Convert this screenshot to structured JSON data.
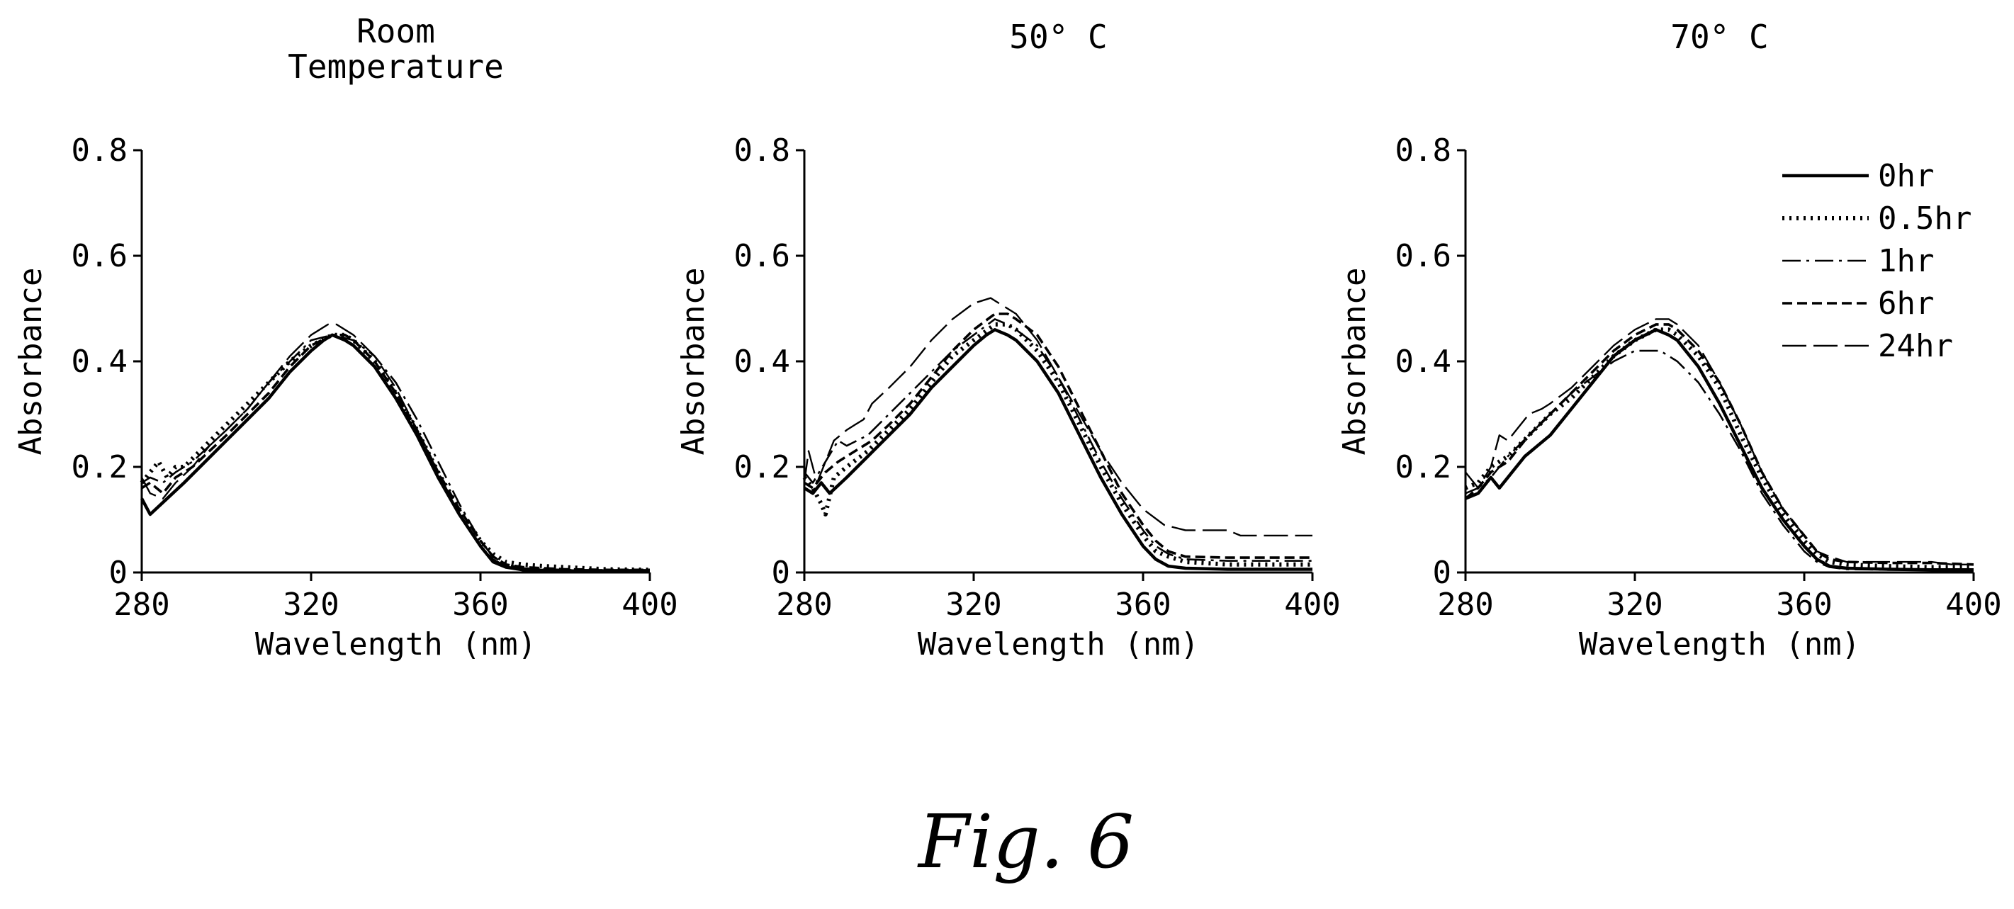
{
  "figure": {
    "caption": "Fig. 6"
  },
  "legend": {
    "entries": [
      {
        "label": "0hr",
        "style": "solid"
      },
      {
        "label": "0.5hr",
        "style": "dotted"
      },
      {
        "label": "1hr",
        "style": "dashdot"
      },
      {
        "label": "6hr",
        "style": "dashed"
      },
      {
        "label": "24hr",
        "style": "longdash"
      }
    ]
  },
  "chart_data": [
    {
      "type": "line",
      "title": "Room Temperature",
      "title_lines": [
        "Room",
        "Temperature"
      ],
      "xlabel": "Wavelength (nm)",
      "ylabel": "Absorbance",
      "xlim": [
        280,
        400
      ],
      "ylim": [
        0,
        0.8
      ],
      "xticks": [
        280,
        320,
        360,
        400
      ],
      "yticks": [
        "0",
        "0.2",
        "0.4",
        "0.6",
        "0.8"
      ],
      "ytick_values": [
        0,
        0.2,
        0.4,
        0.6,
        0.8
      ],
      "grid": false,
      "series": [
        {
          "name": "0hr",
          "style": "solid",
          "x": [
            280,
            282,
            286,
            290,
            295,
            300,
            305,
            310,
            315,
            320,
            323,
            325,
            328,
            330,
            335,
            340,
            345,
            350,
            355,
            360,
            363,
            366,
            370,
            380,
            390,
            400
          ],
          "y": [
            0.14,
            0.11,
            0.14,
            0.17,
            0.21,
            0.25,
            0.29,
            0.33,
            0.38,
            0.42,
            0.44,
            0.45,
            0.44,
            0.43,
            0.39,
            0.33,
            0.26,
            0.18,
            0.11,
            0.05,
            0.02,
            0.01,
            0.005,
            0.003,
            0.003,
            0.003
          ]
        },
        {
          "name": "0.5hr",
          "style": "dotted",
          "x": [
            280,
            282,
            284,
            286,
            288,
            290,
            295,
            300,
            305,
            310,
            315,
            320,
            325,
            328,
            330,
            335,
            340,
            345,
            350,
            355,
            360,
            363,
            366,
            370,
            375,
            380,
            390,
            400
          ],
          "y": [
            0.17,
            0.19,
            0.21,
            0.18,
            0.2,
            0.2,
            0.24,
            0.28,
            0.32,
            0.36,
            0.4,
            0.43,
            0.45,
            0.45,
            0.44,
            0.4,
            0.34,
            0.27,
            0.19,
            0.12,
            0.06,
            0.035,
            0.02,
            0.015,
            0.012,
            0.01,
            0.006,
            0.005
          ]
        },
        {
          "name": "1hr",
          "style": "dashdot",
          "x": [
            280,
            282,
            285,
            288,
            292,
            296,
            300,
            305,
            310,
            315,
            320,
            325,
            330,
            335,
            340,
            345,
            350,
            355,
            360,
            363,
            366,
            370,
            380,
            390,
            400
          ],
          "y": [
            0.17,
            0.18,
            0.17,
            0.19,
            0.21,
            0.24,
            0.27,
            0.31,
            0.36,
            0.4,
            0.44,
            0.45,
            0.44,
            0.41,
            0.36,
            0.29,
            0.21,
            0.13,
            0.06,
            0.03,
            0.015,
            0.008,
            0.005,
            0.004,
            0.004
          ]
        },
        {
          "name": "6hr",
          "style": "dashed",
          "x": [
            280,
            282,
            285,
            288,
            292,
            296,
            300,
            305,
            310,
            315,
            320,
            325,
            328,
            330,
            335,
            340,
            345,
            350,
            355,
            360,
            363,
            366,
            370,
            380,
            390,
            400
          ],
          "y": [
            0.16,
            0.17,
            0.15,
            0.18,
            0.2,
            0.23,
            0.26,
            0.3,
            0.34,
            0.39,
            0.43,
            0.45,
            0.45,
            0.44,
            0.4,
            0.34,
            0.27,
            0.19,
            0.12,
            0.06,
            0.03,
            0.015,
            0.01,
            0.006,
            0.005,
            0.005
          ]
        },
        {
          "name": "24hr",
          "style": "longdash",
          "x": [
            280,
            282,
            285,
            288,
            292,
            296,
            300,
            305,
            310,
            315,
            320,
            324,
            326,
            330,
            335,
            340,
            345,
            350,
            355,
            360,
            363,
            366,
            370,
            380,
            390,
            400
          ],
          "y": [
            0.18,
            0.15,
            0.14,
            0.17,
            0.2,
            0.24,
            0.27,
            0.31,
            0.36,
            0.41,
            0.45,
            0.47,
            0.47,
            0.45,
            0.41,
            0.35,
            0.27,
            0.19,
            0.11,
            0.05,
            0.025,
            0.012,
            0.007,
            0.005,
            0.005,
            0.005
          ]
        }
      ]
    },
    {
      "type": "line",
      "title": "50° C",
      "title_lines": [
        "50° C"
      ],
      "xlabel": "Wavelength (nm)",
      "ylabel": "Absorbance",
      "xlim": [
        280,
        400
      ],
      "ylim": [
        0,
        0.8
      ],
      "xticks": [
        280,
        320,
        360,
        400
      ],
      "yticks": [
        "0",
        "0.2",
        "0.4",
        "0.6",
        "0.8"
      ],
      "ytick_values": [
        0,
        0.2,
        0.4,
        0.6,
        0.8
      ],
      "grid": false,
      "series": [
        {
          "name": "0hr",
          "style": "solid",
          "x": [
            280,
            282,
            284,
            286,
            290,
            295,
            300,
            305,
            310,
            315,
            320,
            323,
            325,
            328,
            330,
            335,
            340,
            345,
            350,
            355,
            360,
            363,
            366,
            370,
            380,
            390,
            400
          ],
          "y": [
            0.16,
            0.15,
            0.17,
            0.15,
            0.18,
            0.22,
            0.26,
            0.3,
            0.35,
            0.39,
            0.43,
            0.45,
            0.46,
            0.45,
            0.44,
            0.4,
            0.34,
            0.26,
            0.18,
            0.11,
            0.05,
            0.025,
            0.012,
            0.008,
            0.006,
            0.006,
            0.006
          ]
        },
        {
          "name": "0.5hr",
          "style": "dotted",
          "x": [
            280,
            282,
            284,
            285,
            287,
            290,
            295,
            300,
            305,
            310,
            315,
            320,
            325,
            328,
            330,
            335,
            340,
            345,
            350,
            355,
            360,
            363,
            366,
            370,
            380,
            390,
            400
          ],
          "y": [
            0.18,
            0.16,
            0.13,
            0.11,
            0.18,
            0.2,
            0.23,
            0.27,
            0.31,
            0.36,
            0.41,
            0.44,
            0.47,
            0.47,
            0.46,
            0.42,
            0.36,
            0.28,
            0.2,
            0.13,
            0.07,
            0.04,
            0.03,
            0.02,
            0.015,
            0.015,
            0.015
          ]
        },
        {
          "name": "1hr",
          "style": "dashdot",
          "x": [
            280,
            282,
            285,
            288,
            290,
            295,
            300,
            305,
            310,
            315,
            320,
            325,
            328,
            330,
            335,
            340,
            345,
            350,
            355,
            360,
            363,
            366,
            370,
            380,
            390,
            400
          ],
          "y": [
            0.19,
            0.17,
            0.21,
            0.25,
            0.24,
            0.26,
            0.3,
            0.34,
            0.38,
            0.42,
            0.45,
            0.48,
            0.47,
            0.46,
            0.43,
            0.37,
            0.29,
            0.21,
            0.14,
            0.08,
            0.05,
            0.035,
            0.025,
            0.022,
            0.022,
            0.022
          ]
        },
        {
          "name": "6hr",
          "style": "dashed",
          "x": [
            280,
            282,
            285,
            288,
            292,
            296,
            300,
            305,
            310,
            315,
            320,
            325,
            328,
            330,
            335,
            340,
            345,
            350,
            355,
            360,
            363,
            366,
            370,
            380,
            390,
            400
          ],
          "y": [
            0.17,
            0.16,
            0.19,
            0.21,
            0.23,
            0.25,
            0.28,
            0.32,
            0.37,
            0.42,
            0.46,
            0.49,
            0.49,
            0.48,
            0.45,
            0.39,
            0.31,
            0.23,
            0.15,
            0.09,
            0.06,
            0.04,
            0.03,
            0.028,
            0.028,
            0.028
          ]
        },
        {
          "name": "24hr",
          "style": "longdash",
          "x": [
            280,
            281,
            283,
            285,
            287,
            290,
            292,
            294,
            296,
            300,
            305,
            310,
            315,
            320,
            324,
            326,
            330,
            335,
            340,
            345,
            350,
            355,
            360,
            365,
            370,
            380,
            383,
            390,
            400
          ],
          "y": [
            0.17,
            0.23,
            0.17,
            0.21,
            0.25,
            0.27,
            0.28,
            0.29,
            0.32,
            0.35,
            0.39,
            0.44,
            0.48,
            0.51,
            0.52,
            0.51,
            0.49,
            0.44,
            0.37,
            0.3,
            0.23,
            0.17,
            0.12,
            0.09,
            0.08,
            0.08,
            0.07,
            0.07,
            0.07
          ]
        }
      ]
    },
    {
      "type": "line",
      "title": "70° C",
      "title_lines": [
        "70° C"
      ],
      "xlabel": "Wavelength (nm)",
      "ylabel": "Absorbance",
      "xlim": [
        280,
        400
      ],
      "ylim": [
        0,
        0.8
      ],
      "xticks": [
        280,
        320,
        360,
        400
      ],
      "yticks": [
        "0",
        "0.2",
        "0.4",
        "0.6",
        "0.8"
      ],
      "ytick_values": [
        0,
        0.2,
        0.4,
        0.6,
        0.8
      ],
      "grid": false,
      "series": [
        {
          "name": "0hr",
          "style": "solid",
          "x": [
            280,
            283,
            286,
            288,
            291,
            294,
            297,
            300,
            305,
            310,
            315,
            320,
            325,
            328,
            330,
            335,
            340,
            345,
            350,
            355,
            360,
            363,
            366,
            370,
            380,
            390,
            400
          ],
          "y": [
            0.14,
            0.15,
            0.18,
            0.16,
            0.19,
            0.22,
            0.24,
            0.26,
            0.31,
            0.36,
            0.41,
            0.44,
            0.46,
            0.45,
            0.44,
            0.39,
            0.32,
            0.24,
            0.16,
            0.1,
            0.05,
            0.025,
            0.012,
            0.008,
            0.006,
            0.005,
            0.005
          ]
        },
        {
          "name": "0.5hr",
          "style": "dotted",
          "x": [
            280,
            283,
            286,
            290,
            295,
            300,
            305,
            310,
            315,
            320,
            325,
            328,
            330,
            335,
            340,
            345,
            350,
            355,
            360,
            363,
            366,
            370,
            380,
            390,
            400
          ],
          "y": [
            0.16,
            0.17,
            0.2,
            0.22,
            0.26,
            0.3,
            0.33,
            0.37,
            0.41,
            0.44,
            0.46,
            0.46,
            0.45,
            0.41,
            0.35,
            0.26,
            0.18,
            0.11,
            0.06,
            0.035,
            0.02,
            0.015,
            0.012,
            0.01,
            0.01
          ]
        },
        {
          "name": "1hr",
          "style": "dashdot",
          "x": [
            280,
            283,
            286,
            290,
            295,
            300,
            305,
            310,
            315,
            320,
            324,
            326,
            330,
            335,
            340,
            345,
            350,
            355,
            360,
            363,
            366,
            370,
            380,
            390,
            400
          ],
          "y": [
            0.15,
            0.16,
            0.18,
            0.22,
            0.26,
            0.3,
            0.34,
            0.37,
            0.4,
            0.42,
            0.42,
            0.42,
            0.4,
            0.36,
            0.3,
            0.23,
            0.15,
            0.09,
            0.04,
            0.02,
            0.01,
            0.006,
            0.005,
            0.005,
            0.005
          ]
        },
        {
          "name": "6hr",
          "style": "dashed",
          "x": [
            280,
            283,
            286,
            290,
            295,
            300,
            305,
            310,
            315,
            320,
            325,
            328,
            330,
            335,
            340,
            345,
            350,
            355,
            360,
            363,
            366,
            370,
            380,
            390,
            400
          ],
          "y": [
            0.14,
            0.16,
            0.19,
            0.21,
            0.26,
            0.3,
            0.34,
            0.38,
            0.42,
            0.45,
            0.47,
            0.47,
            0.46,
            0.42,
            0.36,
            0.28,
            0.19,
            0.12,
            0.07,
            0.04,
            0.025,
            0.02,
            0.018,
            0.018,
            0.015
          ]
        },
        {
          "name": "24hr",
          "style": "longdash",
          "x": [
            280,
            283,
            286,
            288,
            290,
            292,
            295,
            298,
            300,
            305,
            310,
            315,
            320,
            325,
            328,
            330,
            335,
            340,
            345,
            350,
            355,
            360,
            363,
            366,
            370,
            380,
            390,
            395,
            400
          ],
          "y": [
            0.19,
            0.16,
            0.2,
            0.26,
            0.25,
            0.27,
            0.3,
            0.31,
            0.32,
            0.35,
            0.39,
            0.43,
            0.46,
            0.48,
            0.48,
            0.47,
            0.43,
            0.36,
            0.28,
            0.19,
            0.12,
            0.07,
            0.04,
            0.03,
            0.02,
            0.02,
            0.02,
            0.015,
            0.015
          ]
        }
      ]
    }
  ]
}
